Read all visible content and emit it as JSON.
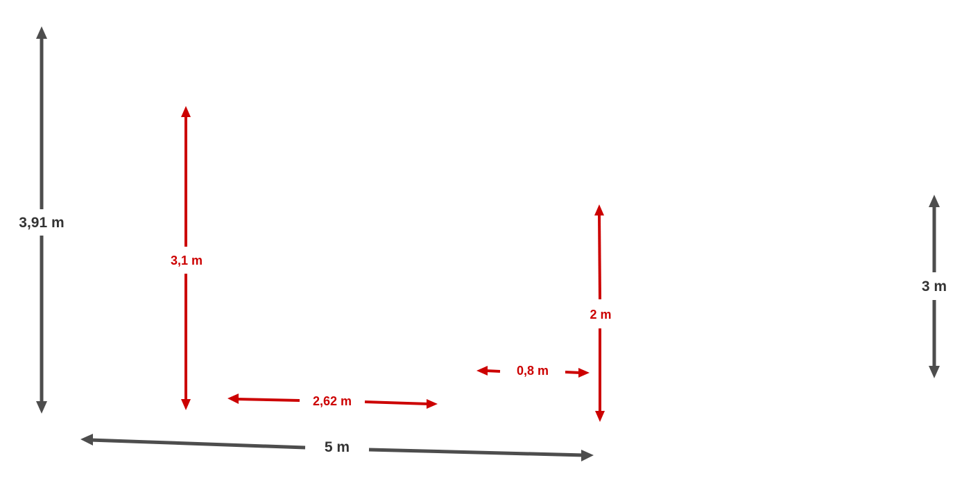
{
  "colors": {
    "dark": "#4d4d4d",
    "dark_text": "#333333",
    "red": "#cc0000"
  },
  "dimensions": {
    "total_height": "3,91 m",
    "total_width": "5 m",
    "right_height": "3 m",
    "left_inner_height": "3,1 m",
    "bottom_inner_width": "2,62 m",
    "inner_short_width": "0,8 m",
    "inner_right_height": "2 m"
  }
}
